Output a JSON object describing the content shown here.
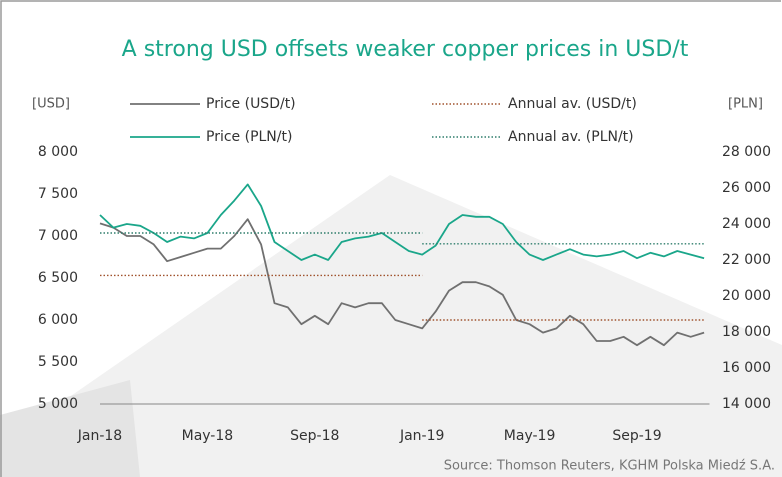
{
  "chart_data": {
    "type": "line",
    "title": "A strong USD offsets weaker copper prices in USD/t",
    "y_label": "[USD]",
    "y2_label": "[PLN]",
    "source": "Source: Thomson Reuters, KGHM Polska Miedź S.A.",
    "x": [
      0,
      0.5,
      1,
      1.5,
      2,
      2.5,
      3,
      3.5,
      4,
      4.5,
      5,
      5.5,
      6,
      6.5,
      7,
      7.5,
      8,
      8.5,
      9,
      9.5,
      10,
      10.5,
      11,
      11.5,
      12,
      12.5,
      13,
      13.5,
      14,
      14.5,
      15,
      15.5,
      16,
      16.5,
      17,
      17.5,
      18,
      18.5,
      19,
      19.5,
      20,
      20.5,
      21,
      21.5,
      22,
      22.5
    ],
    "xlim": [
      -0.5,
      22.7
    ],
    "xticks": [
      {
        "value": 0,
        "label": "Jan-18"
      },
      {
        "value": 4,
        "label": "May-18"
      },
      {
        "value": 8,
        "label": "Sep-18"
      },
      {
        "value": 12,
        "label": "Jan-19"
      },
      {
        "value": 16,
        "label": "May-19"
      },
      {
        "value": 20,
        "label": "Sep-19"
      }
    ],
    "ylim": [
      5000,
      8000
    ],
    "yticks": [
      {
        "value": 5000,
        "label": "5 000"
      },
      {
        "value": 5500,
        "label": "5 500"
      },
      {
        "value": 6000,
        "label": "6 000"
      },
      {
        "value": 6500,
        "label": "6 500"
      },
      {
        "value": 7000,
        "label": "7 000"
      },
      {
        "value": 7500,
        "label": "7 500"
      },
      {
        "value": 8000,
        "label": "8 000"
      }
    ],
    "y2lim": [
      14000,
      28000
    ],
    "y2ticks": [
      {
        "value": 14000,
        "label": "14 000"
      },
      {
        "value": 16000,
        "label": "16 000"
      },
      {
        "value": 18000,
        "label": "18 000"
      },
      {
        "value": 20000,
        "label": "20 000"
      },
      {
        "value": 22000,
        "label": "22 000"
      },
      {
        "value": 24000,
        "label": "24 000"
      },
      {
        "value": 26000,
        "label": "26 000"
      },
      {
        "value": 28000,
        "label": "28 000"
      }
    ],
    "series": [
      {
        "name": "Price (USD/t)",
        "color": "#707070",
        "style": "solid",
        "values": [
          7150,
          7100,
          7000,
          7000,
          6900,
          6700,
          6750,
          6800,
          6850,
          6850,
          7000,
          7200,
          6900,
          6200,
          6150,
          5950,
          6050,
          5950,
          6200,
          6150,
          6200,
          6200,
          6000,
          5950,
          5900,
          6100,
          6350,
          6450,
          6450,
          6400,
          6300,
          6000,
          5950,
          5850,
          5900,
          6050,
          5950,
          5750,
          5750,
          5800,
          5700,
          5800,
          5700,
          5850,
          5800,
          5850
        ]
      },
      {
        "name": "Annual av. (USD/t)",
        "color": "#a0522d",
        "style": "dotted",
        "segments": [
          {
            "x": [
              0,
              12
            ],
            "value": 6530
          },
          {
            "x": [
              12,
              22.5
            ],
            "value": 6000
          }
        ]
      },
      {
        "name": "Price (PLN/t)",
        "color": "#1aa68a",
        "style": "solid",
        "axis": "y2",
        "values": [
          24500,
          23800,
          24000,
          23900,
          23500,
          23000,
          23300,
          23200,
          23500,
          24500,
          25300,
          26200,
          25000,
          23000,
          22500,
          22000,
          22300,
          22000,
          23000,
          23200,
          23300,
          23500,
          23000,
          22500,
          22300,
          22800,
          24000,
          24500,
          24400,
          24400,
          24000,
          23000,
          22300,
          22000,
          22300,
          22600,
          22300,
          22200,
          22300,
          22500,
          22100,
          22400,
          22200,
          22500,
          22300,
          22100
        ]
      },
      {
        "name": "Annual av. (PLN/t)",
        "color": "#2e7d6b",
        "style": "dotted",
        "axis": "y2",
        "segments": [
          {
            "x": [
              0,
              12
            ],
            "value": 23500
          },
          {
            "x": [
              12,
              22.5
            ],
            "value": 22900
          }
        ]
      }
    ]
  }
}
